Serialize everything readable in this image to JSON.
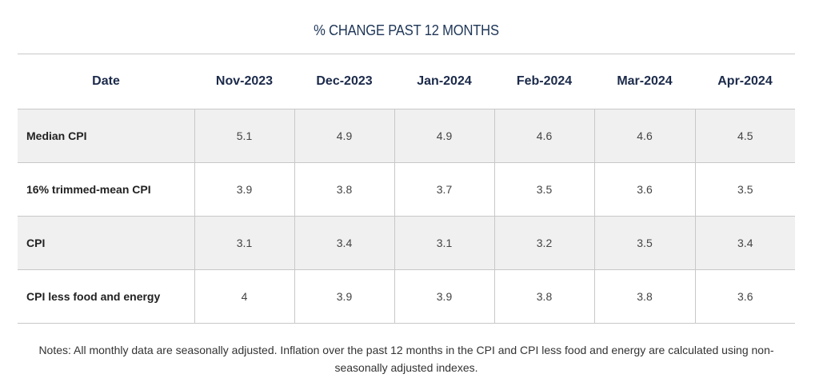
{
  "title": "% CHANGE PAST 12 MONTHS",
  "notes": "Notes: All monthly data are seasonally adjusted. Inflation over the past 12 months in the CPI and CPI less food and energy are calculated using non-seasonally adjusted indexes.",
  "chart_data": {
    "type": "table",
    "title": "% CHANGE PAST 12 MONTHS",
    "row_header": "Date",
    "columns": [
      "Nov-2023",
      "Dec-2023",
      "Jan-2024",
      "Feb-2024",
      "Mar-2024",
      "Apr-2024"
    ],
    "rows": [
      {
        "label": "Median CPI",
        "values": [
          "5.1",
          "4.9",
          "4.9",
          "4.6",
          "4.6",
          "4.5"
        ]
      },
      {
        "label": "16% trimmed-mean CPI",
        "values": [
          "3.9",
          "3.8",
          "3.7",
          "3.5",
          "3.6",
          "3.5"
        ]
      },
      {
        "label": "CPI",
        "values": [
          "3.1",
          "3.4",
          "3.1",
          "3.2",
          "3.5",
          "3.4"
        ]
      },
      {
        "label": "CPI less food and energy",
        "values": [
          "4",
          "3.9",
          "3.9",
          "3.8",
          "3.8",
          "3.6"
        ]
      }
    ]
  }
}
